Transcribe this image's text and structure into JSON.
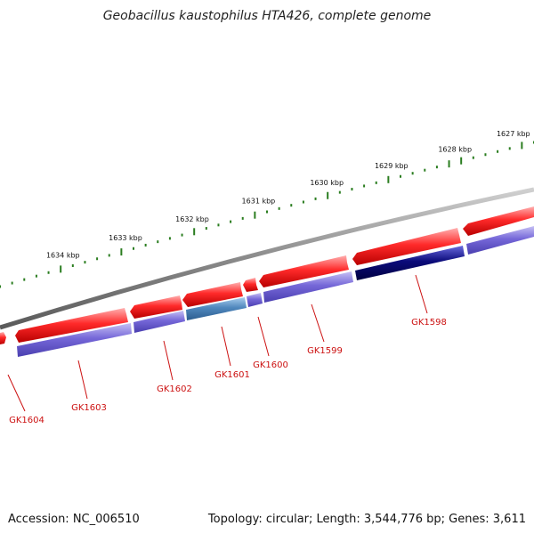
{
  "title": "Geobacillus kaustophilus HTA426, complete genome",
  "footer": {
    "accession": "Accession: NC_006510",
    "summary": "Topology: circular; Length: 3,544,776 bp; Genes: 3,611"
  },
  "colors": {
    "backbone": "#8a8a8a",
    "forward_gene": "#ee1111",
    "reverse_gene": "#6a5fcf",
    "reverse_gene_highlight_steel": "#4f87bd",
    "reverse_gene_highlight_navy": "#0b0b7a",
    "ticks": "#2a7d1f",
    "gene_label": "#cc1111",
    "leader_line": "#cc1111"
  },
  "ruler": {
    "unit": "kbp",
    "labels": [
      "1627 kbp",
      "1628 kbp",
      "1629 kbp",
      "1630 kbp",
      "1631 kbp",
      "1632 kbp",
      "1633 kbp",
      "1634 kbp"
    ]
  },
  "genes": [
    {
      "label": "GK1598",
      "strand": "reverse",
      "color_key": "reverse_gene_highlight_navy"
    },
    {
      "label": "GK1599",
      "strand": "reverse",
      "color_key": "reverse_gene"
    },
    {
      "label": "GK1600",
      "strand": "reverse",
      "color_key": "reverse_gene"
    },
    {
      "label": "GK1601",
      "strand": "reverse",
      "color_key": "reverse_gene_highlight_steel"
    },
    {
      "label": "GK1602",
      "strand": "reverse",
      "color_key": "reverse_gene"
    },
    {
      "label": "GK1603",
      "strand": "reverse",
      "color_key": "reverse_gene"
    },
    {
      "label": "GK1604",
      "strand": "forward",
      "color_key": "forward_gene"
    }
  ]
}
